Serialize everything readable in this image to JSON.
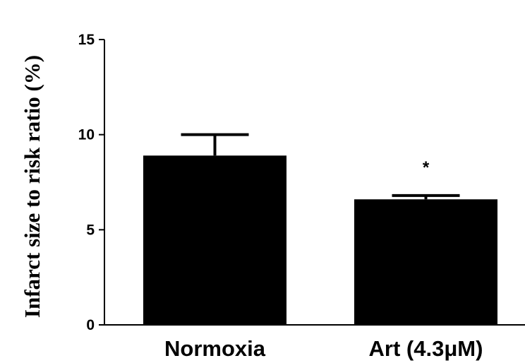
{
  "chart_data": {
    "type": "bar",
    "title": "",
    "xlabel": "",
    "ylabel": "Infarct size to risk ratio (%)",
    "categories": [
      "Normoxia",
      "Art (4.3μM)"
    ],
    "values": [
      8.9,
      6.6
    ],
    "error_upper": [
      10.0,
      6.8
    ],
    "annotations": [
      "",
      "*"
    ],
    "yticks": [
      "0",
      "5",
      "10",
      "15"
    ],
    "ylim": [
      0,
      15
    ],
    "grid": false,
    "legend": "none",
    "bar_color": "#000000"
  }
}
